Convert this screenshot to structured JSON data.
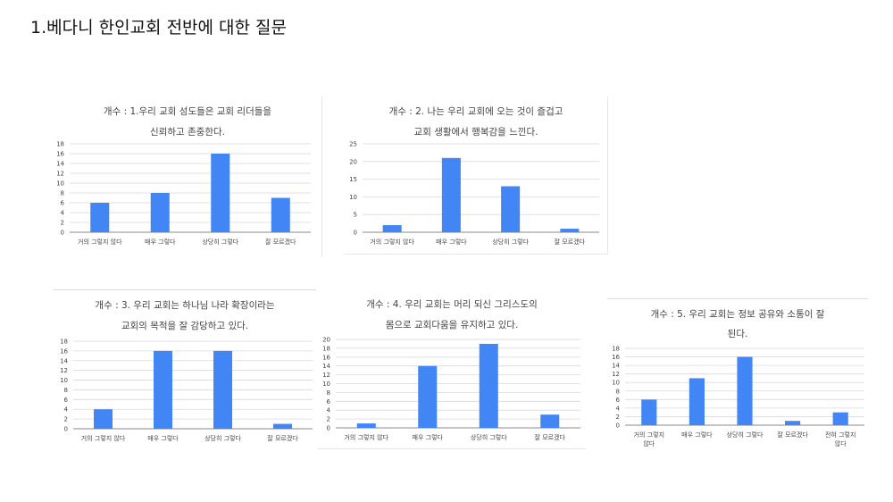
{
  "page": {
    "title": "1.베다니 한인교회 전반에 대한 질문"
  },
  "colors": {
    "bar": "#4285f4",
    "grid": "#d9d9d9",
    "axis": "#888888",
    "text": "#444444"
  },
  "chart_data": [
    {
      "type": "bar",
      "title_lines": [
        "개수 : 1.우리 교회 성도들은 교회 리더들을",
        "신뢰하고 존중한다."
      ],
      "categories": [
        "거의 그렇지 않다",
        "매우 그렇다",
        "상당히 그렇다",
        "잘 모르겠다"
      ],
      "values": [
        6,
        8,
        16,
        7
      ],
      "yticks": [
        0,
        2,
        4,
        6,
        8,
        10,
        12,
        14,
        16,
        18
      ],
      "ylim": [
        0,
        18
      ],
      "grid": true
    },
    {
      "type": "bar",
      "title_lines": [
        "개수 : 2. 나는 우리 교회에 오는 것이 즐겁고",
        "교회 생활에서 행복감을 느낀다."
      ],
      "categories": [
        "거의 그렇지 않다",
        "매우 그렇다",
        "상당히 그렇다",
        "잘 모르겠다"
      ],
      "values": [
        2,
        21,
        13,
        1
      ],
      "yticks": [
        0,
        5,
        10,
        15,
        20,
        25
      ],
      "ylim": [
        0,
        25
      ],
      "grid": true
    },
    {
      "type": "bar",
      "title_lines": [
        "개수 : 3. 우리 교회는 하나님 나라 확장이라는",
        "교회의 목적을 잘 감당하고 있다."
      ],
      "categories": [
        "거의 그렇지 않다",
        "매우 그렇다",
        "상당히 그렇다",
        "잘 모르겠다"
      ],
      "values": [
        4,
        16,
        16,
        1
      ],
      "yticks": [
        0,
        2,
        4,
        6,
        8,
        10,
        12,
        14,
        16,
        18
      ],
      "ylim": [
        0,
        18
      ],
      "grid": true
    },
    {
      "type": "bar",
      "title_lines": [
        "개수 : 4. 우리 교회는 머리 되신 그리스도의",
        "몸으로 교회다움을 유지하고 있다."
      ],
      "categories": [
        "거의 그렇지 않다",
        "매우 그렇다",
        "상당히 그렇다",
        "잘 모르겠다"
      ],
      "values": [
        1,
        14,
        19,
        3
      ],
      "yticks": [
        0,
        2,
        4,
        6,
        8,
        10,
        12,
        14,
        16,
        18,
        20
      ],
      "ylim": [
        0,
        20
      ],
      "grid": true
    },
    {
      "type": "bar",
      "title_lines": [
        "개수 : 5. 우리 교회는 정보 공유와 소통이 잘",
        "된다."
      ],
      "categories": [
        [
          "거의 그렇지",
          "않다"
        ],
        [
          "매우 그렇다"
        ],
        [
          "상당히 그렇다"
        ],
        [
          "잘 모르겠다"
        ],
        [
          "전혀 그렇지",
          "않다"
        ]
      ],
      "values": [
        6,
        11,
        16,
        1,
        3
      ],
      "yticks": [
        0,
        2,
        4,
        6,
        8,
        10,
        12,
        14,
        16,
        18
      ],
      "ylim": [
        0,
        18
      ],
      "grid": true
    }
  ]
}
